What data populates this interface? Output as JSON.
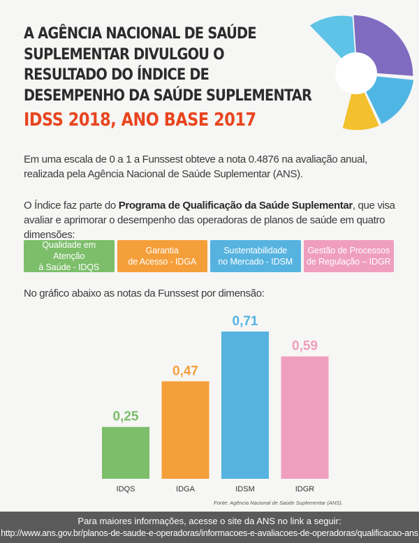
{
  "header": {
    "title_lines": [
      "A AGÊNCIA NACIONAL DE SAÚDE",
      "SUPLEMENTAR DIVULGOU O",
      "RESULTADO DO ÍNDICE DE",
      "DESEMPENHO DA SAÚDE SUPLEMENTAR"
    ],
    "subtitle": "IDSS 2018, ANO BASE 2017"
  },
  "intro": {
    "p1": "Em uma escala de 0 a 1 a Funssest obteve a nota 0.4876 na avaliação anual, realizada pela Agência Nacional de Saúde Suplementar (ANS).",
    "p2_before": "O Índice faz parte do ",
    "p2_bold": "Programa de Qualificação da Saúde Suplementar",
    "p2_after": ", que visa avaliar e aprimorar o desempenho das operadoras de planos de saúde em quatro dimensões:"
  },
  "dimensions": [
    {
      "line1": "Qualidade em Atenção",
      "line2": "à Saúde - IDQS",
      "color": "#7cbe6a"
    },
    {
      "line1": "Garantia",
      "line2": "de Acesso - IDGA",
      "color": "#f59f3b"
    },
    {
      "line1": "Sustentabilidade",
      "line2": "no Mercado - IDSM",
      "color": "#56b3e0"
    },
    {
      "line1": "Gestão de Processos",
      "line2": "de Regulação – IDGR",
      "color": "#ef9ebe"
    }
  ],
  "chart_caption": "No gráfico abaixo as notas da Funssest por dimensão:",
  "chart_data": {
    "type": "bar",
    "categories": [
      "IDQS",
      "IDGA",
      "IDSM",
      "IDGR"
    ],
    "values": [
      0.25,
      0.47,
      0.71,
      0.59
    ],
    "value_labels": [
      "0,25",
      "0,47",
      "0,71",
      "0,59"
    ],
    "colors": [
      "#7cbe6a",
      "#f59f3b",
      "#56b3e0",
      "#ef9ebe"
    ],
    "ylim": [
      0,
      0.71
    ],
    "grid": false,
    "legend": "none"
  },
  "source": "Fonte: Agência Nacional de Saúde Suplementar (ANS).",
  "footer": {
    "line1": "Para maiores informações, acesse o site da ANS no link a seguir:",
    "link": "http://www.ans.gov.br/planos-de-saude-e-operadoras/informacoes-e-avaliacoes-de-operadoras/qualificacao-ans"
  }
}
